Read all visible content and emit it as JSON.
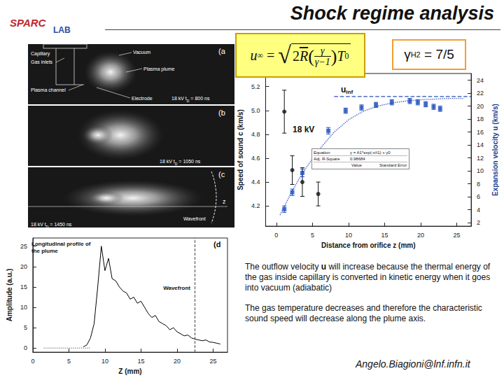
{
  "header": {
    "title": "Shock regime analysis",
    "logo": {
      "top": "SPARC",
      "bottom": "LAB"
    }
  },
  "formula": {
    "lhs": "u",
    "lhs_sub": "∞",
    "eq": "=",
    "sqrt": "√",
    "coef": "2",
    "R": "R",
    "open": "(",
    "num": "γ",
    "den": "γ−1",
    "close": ")",
    "T": "T",
    "T_sub": "0"
  },
  "gamma_box": {
    "symbol": "γ",
    "sub": "H2",
    "text": " = 7/5"
  },
  "photo": {
    "panels": [
      {
        "label": "(a",
        "caption": {
          "pre": "18 kV  t",
          "sub": "D",
          "post": " = 800 ns"
        },
        "annotations": [
          "Vacuum",
          "Capillary",
          "Gas inlets",
          "Plasma plume",
          "Plasma channel",
          "Electrode"
        ]
      },
      {
        "label": "(b",
        "caption": {
          "pre": "18 kV  t",
          "sub": "D",
          "post": " = 1050 ns"
        }
      },
      {
        "label": "(c",
        "caption": {
          "pre": "18 kV  t",
          "sub": "D",
          "post": " = 1450 ns"
        },
        "annotations": [
          "z",
          "Wavefront"
        ]
      }
    ]
  },
  "chart_data": [
    {
      "type": "scatter",
      "title": "18 kV",
      "x_label": "Distance from orifice z (mm)",
      "y_label": "Speed of sound c (km/s)",
      "y2_label": "Expansion velocity u (km/s)",
      "xlim": [
        -1.5,
        27
      ],
      "xticks": [
        0,
        5,
        10,
        15,
        20,
        25
      ],
      "ylim": [
        4.03,
        5.31
      ],
      "yticks": [
        4.2,
        4.4,
        4.6,
        4.8,
        {
          "value": 5,
          "label": "5.0"
        },
        5.2
      ],
      "y2lim": [
        1.47,
        25.05
      ],
      "y2ticks": [
        2,
        4,
        6,
        8,
        10,
        12,
        14,
        16,
        18,
        20,
        22,
        24
      ],
      "grid": false,
      "series": [
        {
          "axis": "y",
          "marker": "circle",
          "color": "#111111",
          "x": [
            1.1,
            2.2,
            3.6,
            5.8
          ],
          "values": [
            4.99,
            4.5,
            4.4,
            4.3
          ],
          "errors": [
            0.18,
            0.12,
            0.12,
            0.1
          ]
        },
        {
          "axis": "y2",
          "marker": "square",
          "color": "#1f4fbf",
          "x": [
            1.1,
            2.2,
            3.6,
            7.2,
            9.6,
            11.8,
            13.8,
            16,
            18.5,
            19.6,
            20.7,
            21.8,
            22.7
          ],
          "values": [
            4.1,
            6.7,
            9.7,
            16.2,
            19.3,
            19.8,
            20.2,
            20.6,
            20.8,
            20.6,
            20.3,
            19.9,
            19.6
          ],
          "errors": [
            0.5,
            0.5,
            0.6,
            0.5,
            0.4,
            0.4,
            0.4,
            0.4,
            0.4,
            0.4,
            0.4,
            0.4,
            0.4
          ]
        },
        {
          "axis": "y2",
          "type": "line",
          "line_style": "dotted",
          "color": "#3b5fc0",
          "x": [
            0.5,
            1,
            2,
            3,
            4,
            6,
            8,
            10,
            12,
            14,
            16,
            18,
            20,
            22,
            24,
            26
          ],
          "values": [
            3.2,
            4.3,
            6.5,
            8.5,
            10.3,
            13.4,
            16.0,
            17.9,
            19.2,
            20.0,
            20.5,
            20.8,
            21.0,
            21.1,
            21.2,
            21.2
          ]
        },
        {
          "axis": "y2",
          "type": "line",
          "line_style": "dashed",
          "color": "#2a4fb0",
          "x": [
            8,
            27
          ],
          "values": [
            21.5,
            21.5
          ],
          "label": {
            "main": "u",
            "sub": "inf"
          }
        }
      ],
      "fit_table": {
        "rows": [
          [
            "Equation",
            "y = A1*exp(-x/t1) + y0"
          ],
          [
            "Adj. R-Square",
            "0.98684"
          ]
        ],
        "columns": [
          "Value",
          "Standard Error"
        ]
      }
    },
    {
      "type": "line",
      "panel_label": "(d",
      "annotation": "Longitudinal profile of the plume",
      "x_label": "Z (mm)",
      "y_label": "Amplitude (a.u.)",
      "xlim": [
        0,
        27
      ],
      "xticks": [
        0,
        5,
        10,
        15,
        20,
        25
      ],
      "ylim": [
        -1,
        27
      ],
      "yticks": [
        0,
        5,
        10,
        15,
        20,
        25
      ],
      "grid": false,
      "series": [
        {
          "color": "#000000",
          "x": [
            7,
            7.5,
            8,
            8.5,
            9,
            9.5,
            10,
            10.5,
            11,
            11.5,
            12,
            12.5,
            13,
            13.5,
            14,
            14.5,
            15,
            15.5,
            16,
            16.5,
            17,
            17.5,
            18,
            18.5,
            19,
            19.5,
            20,
            20.5,
            21,
            21.5,
            22,
            22.5,
            23,
            23.5,
            24,
            24.5,
            25,
            25.5,
            26
          ],
          "values": [
            0.3,
            0.8,
            2.5,
            6,
            15,
            25,
            19,
            22,
            17,
            16.5,
            15,
            14,
            13.5,
            12,
            12.5,
            11,
            11.5,
            10,
            8.5,
            7.5,
            8,
            6.5,
            6,
            5.5,
            4.5,
            5,
            4,
            3.5,
            3,
            3.2,
            2.5,
            2.2,
            2,
            1.8,
            2,
            1.5,
            1.4,
            1.2,
            1.0
          ]
        },
        {
          "color": "#999999",
          "line_style": "dotted",
          "x": [
            1.5,
            8
          ],
          "values": [
            0,
            0
          ]
        }
      ],
      "wavefront": {
        "label": "Wavefront",
        "x": 22.5
      }
    }
  ],
  "paragraphs": [
    [
      {
        "text": "The outflow velocity "
      },
      {
        "text": "u",
        "bold": true
      },
      {
        "text": " will increase because the thermal energy of the gas inside capillary is converted in kinetic energy when it goes into vacuum (adiabatic)"
      }
    ],
    [
      {
        "text": "The gas temperature decreases and therefore the characteristic sound speed will decrease along the plume axis."
      }
    ]
  ],
  "footer": "Angelo.Biagioni@lnf.infn.it"
}
